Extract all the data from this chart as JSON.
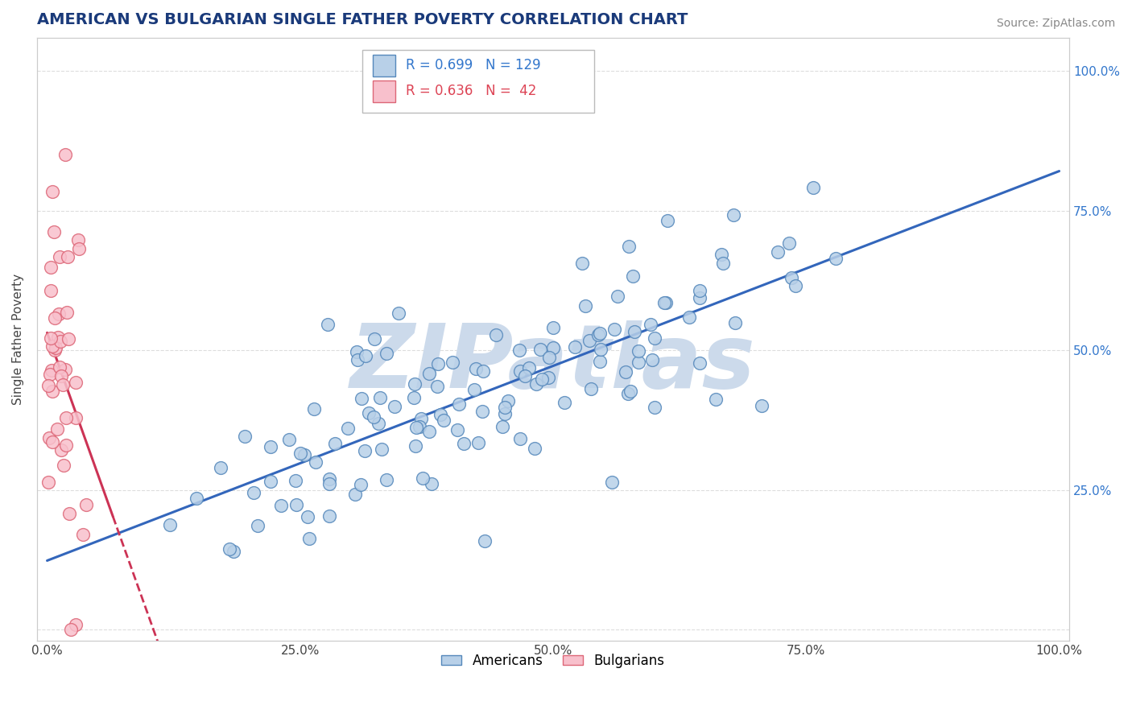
{
  "title": "AMERICAN VS BULGARIAN SINGLE FATHER POVERTY CORRELATION CHART",
  "source": "Source: ZipAtlas.com",
  "ylabel": "Single Father Poverty",
  "x_ticks": [
    0.0,
    0.25,
    0.5,
    0.75,
    1.0
  ],
  "x_tick_labels": [
    "0.0%",
    "25.0%",
    "50.0%",
    "75.0%",
    "100.0%"
  ],
  "y_ticks": [
    0.0,
    0.25,
    0.5,
    0.75,
    1.0
  ],
  "y_tick_labels": [
    "",
    "25.0%",
    "50.0%",
    "75.0%",
    "100.0%"
  ],
  "american_R": 0.699,
  "american_N": 129,
  "bulgarian_R": 0.636,
  "bulgarian_N": 42,
  "american_color": "#b8d0e8",
  "american_edge": "#5588bb",
  "bulgarian_color": "#f8c0cc",
  "bulgarian_edge": "#dd6677",
  "american_line_color": "#3366bb",
  "bulgarian_line_color": "#cc3355",
  "watermark_color": "#ccdaeb",
  "background_color": "#ffffff",
  "title_color": "#1a3a7a",
  "legend_R_color_american": "#3377cc",
  "legend_R_color_bulgarian": "#dd4455"
}
